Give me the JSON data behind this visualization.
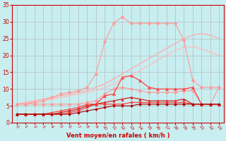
{
  "bg_color": "#c8eef0",
  "grid_color": "#b0b0b0",
  "xlabel": "Vent moyen/en rafales ( km/h )",
  "x_ticks": [
    0,
    1,
    2,
    3,
    4,
    5,
    6,
    7,
    8,
    9,
    10,
    11,
    12,
    13,
    14,
    15,
    16,
    17,
    18,
    19,
    20,
    21,
    22,
    23
  ],
  "xlim": [
    -0.5,
    23.5
  ],
  "ylim": [
    0,
    35
  ],
  "y_ticks": [
    0,
    5,
    10,
    15,
    20,
    25,
    30,
    35
  ],
  "series": [
    {
      "color": "#ff9999",
      "marker": "D",
      "markersize": 2.5,
      "linewidth": 0.8,
      "x": [
        0,
        1,
        2,
        3,
        4,
        5,
        6,
        7,
        8,
        9,
        10,
        11,
        12,
        13,
        14,
        15,
        16,
        17,
        18,
        19,
        20,
        21,
        22,
        23
      ],
      "y": [
        5.5,
        5.5,
        6.0,
        6.5,
        7.5,
        8.5,
        9.0,
        9.5,
        10.5,
        14.5,
        24.0,
        29.5,
        31.5,
        29.5,
        29.5,
        29.5,
        29.5,
        29.5,
        29.5,
        24.5,
        12.5,
        10.5,
        10.5,
        10.5
      ]
    },
    {
      "color": "#ff9999",
      "marker": "D",
      "markersize": 2.5,
      "linewidth": 0.8,
      "x": [
        0,
        1,
        2,
        3,
        4,
        5,
        6,
        7,
        8,
        9,
        10,
        11,
        12,
        13,
        14,
        15,
        16,
        17,
        18,
        19,
        20,
        21,
        22,
        23
      ],
      "y": [
        5.5,
        5.5,
        5.5,
        5.5,
        5.5,
        5.5,
        5.5,
        5.5,
        6.0,
        6.5,
        8.5,
        10.0,
        10.5,
        10.0,
        9.5,
        9.0,
        9.0,
        9.0,
        9.0,
        9.5,
        9.5,
        5.5,
        5.5,
        10.5
      ]
    },
    {
      "color": "#ff4444",
      "marker": "^",
      "markersize": 3,
      "linewidth": 0.9,
      "x": [
        0,
        1,
        2,
        3,
        4,
        5,
        6,
        7,
        8,
        9,
        10,
        11,
        12,
        13,
        14,
        15,
        16,
        17,
        18,
        19,
        20,
        21,
        22,
        23
      ],
      "y": [
        2.5,
        2.5,
        2.5,
        2.5,
        3.0,
        3.5,
        4.0,
        4.5,
        5.5,
        5.5,
        8.0,
        8.5,
        13.5,
        14.0,
        12.5,
        10.5,
        10.0,
        10.0,
        10.0,
        10.0,
        10.5,
        5.5,
        5.5,
        5.5
      ]
    },
    {
      "color": "#ffaaaa",
      "marker": null,
      "linewidth": 0.9,
      "x": [
        0,
        1,
        2,
        3,
        4,
        5,
        6,
        7,
        8,
        9,
        10,
        11,
        12,
        13,
        14,
        15,
        16,
        17,
        18,
        19,
        20,
        21,
        22,
        23
      ],
      "y": [
        5.5,
        6.0,
        6.5,
        7.0,
        7.5,
        8.0,
        8.5,
        9.0,
        9.5,
        10.5,
        11.5,
        13.0,
        14.5,
        16.0,
        17.5,
        19.0,
        20.5,
        22.0,
        23.5,
        25.0,
        26.0,
        26.5,
        26.0,
        25.0
      ]
    },
    {
      "color": "#ffbbbb",
      "marker": null,
      "linewidth": 0.9,
      "x": [
        0,
        1,
        2,
        3,
        4,
        5,
        6,
        7,
        8,
        9,
        10,
        11,
        12,
        13,
        14,
        15,
        16,
        17,
        18,
        19,
        20,
        21,
        22,
        23
      ],
      "y": [
        5.5,
        5.8,
        6.1,
        6.5,
        7.0,
        7.5,
        8.0,
        8.5,
        9.0,
        9.5,
        10.5,
        11.5,
        13.0,
        14.0,
        15.5,
        17.0,
        18.5,
        20.0,
        21.5,
        22.5,
        22.5,
        22.0,
        21.0,
        20.0
      ]
    },
    {
      "color": "#cc2222",
      "marker": "^",
      "markersize": 2.5,
      "linewidth": 0.9,
      "x": [
        0,
        1,
        2,
        3,
        4,
        5,
        6,
        7,
        8,
        9,
        10,
        11,
        12,
        13,
        14,
        15,
        16,
        17,
        18,
        19,
        20,
        21,
        22,
        23
      ],
      "y": [
        2.5,
        2.5,
        2.5,
        2.5,
        2.5,
        3.0,
        3.5,
        4.0,
        5.0,
        5.5,
        6.0,
        6.5,
        7.0,
        7.5,
        7.0,
        6.5,
        6.5,
        6.5,
        6.5,
        7.0,
        5.5,
        5.5,
        5.5,
        5.5
      ]
    },
    {
      "color": "#ff3333",
      "marker": "D",
      "markersize": 2,
      "linewidth": 0.8,
      "x": [
        0,
        1,
        2,
        3,
        4,
        5,
        6,
        7,
        8,
        9,
        10,
        11,
        12,
        13,
        14,
        15,
        16,
        17,
        18,
        19,
        20,
        21,
        22,
        23
      ],
      "y": [
        2.5,
        2.5,
        2.5,
        2.5,
        2.5,
        2.5,
        3.0,
        3.5,
        4.5,
        5.5,
        5.5,
        5.5,
        5.5,
        6.0,
        6.0,
        6.0,
        6.0,
        6.0,
        6.0,
        6.0,
        5.5,
        5.5,
        5.5,
        5.5
      ]
    },
    {
      "color": "#aa0000",
      "marker": "D",
      "markersize": 2,
      "linewidth": 0.8,
      "x": [
        0,
        1,
        2,
        3,
        4,
        5,
        6,
        7,
        8,
        9,
        10,
        11,
        12,
        13,
        14,
        15,
        16,
        17,
        18,
        19,
        20,
        21,
        22,
        23
      ],
      "y": [
        2.5,
        2.5,
        2.5,
        2.5,
        2.5,
        2.5,
        2.5,
        3.0,
        3.5,
        4.0,
        4.5,
        5.0,
        5.0,
        5.0,
        5.5,
        5.5,
        5.5,
        5.5,
        5.5,
        5.5,
        5.5,
        5.5,
        5.5,
        5.5
      ]
    }
  ]
}
